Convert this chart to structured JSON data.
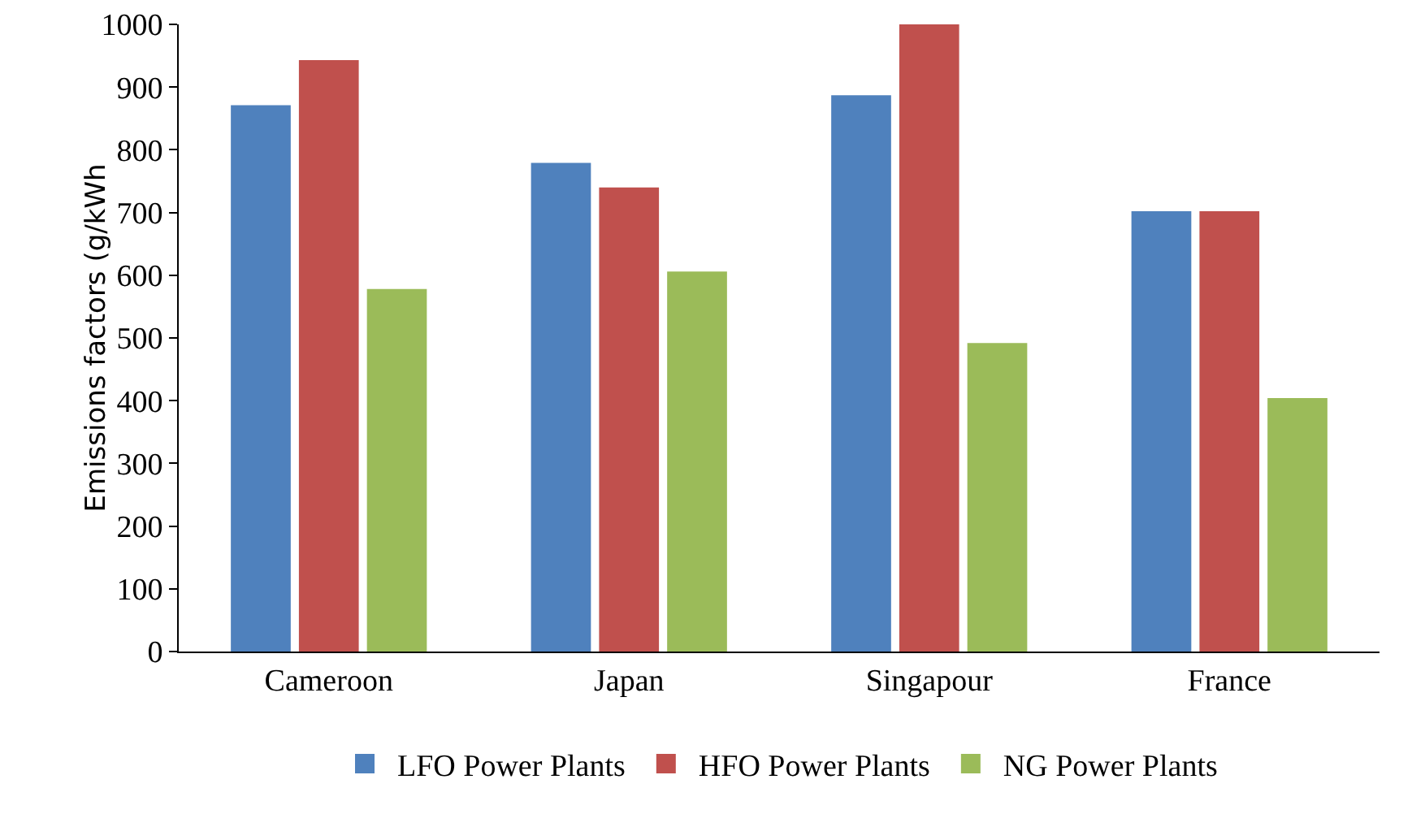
{
  "chart_data": {
    "type": "bar",
    "ylabel": "Emissions factors (g/kWh",
    "categories": [
      "Cameroon",
      "Japan",
      "Singapour",
      "France"
    ],
    "series": [
      {
        "name": "LFO Power Plants",
        "color": "#4f81bd",
        "values": [
          871,
          779,
          887,
          702
        ]
      },
      {
        "name": "HFO Power Plants",
        "color": "#c0504d",
        "values": [
          943,
          740,
          1000,
          702
        ]
      },
      {
        "name": "NG Power Plants",
        "color": "#9bbb59",
        "values": [
          578,
          606,
          492,
          404
        ]
      }
    ],
    "ylim": [
      0,
      1000
    ],
    "yticks": [
      0,
      100,
      200,
      300,
      400,
      500,
      600,
      700,
      800,
      900,
      1000
    ],
    "grid": false,
    "legend": "bottom"
  }
}
